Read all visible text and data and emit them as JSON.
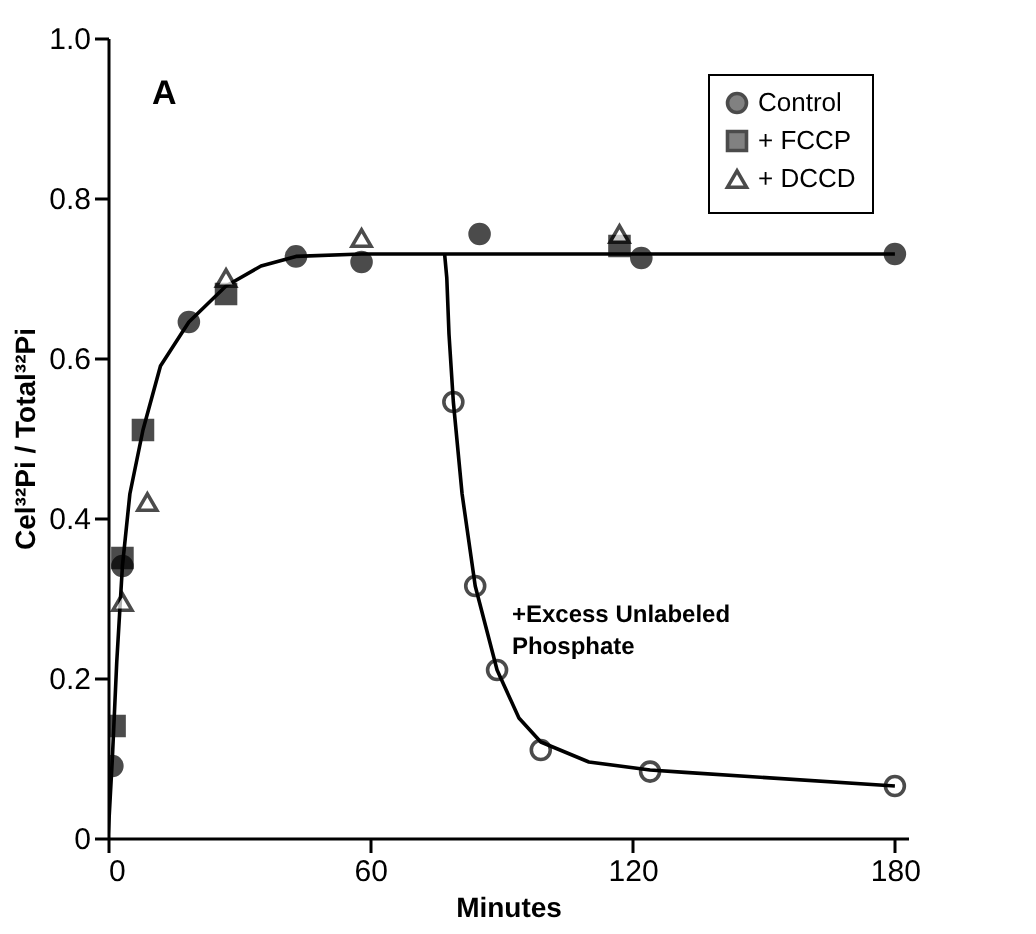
{
  "chart_data": {
    "type": "scatter",
    "xlabel": "Minutes",
    "ylabel": "Cel³²Pi / Total³²Pi",
    "xlim": [
      0,
      183
    ],
    "ylim": [
      0,
      1
    ],
    "xticks": [
      0,
      60,
      120,
      180
    ],
    "yticks": [
      0,
      {
        "value": 0.2,
        "label": "0.2"
      },
      {
        "value": 0.4,
        "label": "0.4"
      },
      {
        "value": 0.6,
        "label": "0.6"
      },
      {
        "value": 0.8,
        "label": "0.8"
      },
      {
        "value": 1,
        "label": "1.0"
      }
    ],
    "grid": false,
    "legend": "top right",
    "annotations": [
      "A",
      {
        "text": "+Excess Unlabeled Phosphate",
        "x": 86,
        "y": 0.27
      }
    ],
    "series": [
      {
        "name": "Control",
        "marker": "circle",
        "color": "#000000",
        "x": [
          1,
          3.3,
          18.5,
          43,
          58,
          85,
          122,
          180
        ],
        "values": [
          0.09,
          0.34,
          0.645,
          0.727,
          0.72,
          0.755,
          0.725,
          0.73
        ]
      },
      {
        "name": "+ FCCP",
        "marker": "square",
        "color": "#000000",
        "x": [
          1.5,
          3.3,
          8,
          27,
          117
        ],
        "values": [
          0.14,
          0.35,
          0.51,
          0.68,
          0.74
        ]
      },
      {
        "name": "+ DCCD",
        "marker": "triangle",
        "color": "#ffffff",
        "x": [
          3.3,
          9,
          27,
          58,
          117
        ],
        "values": [
          0.295,
          0.42,
          0.7,
          0.75,
          0.755
        ]
      },
      {
        "marker": "circle",
        "color": "#ffffff",
        "x": [
          79,
          84,
          89,
          99,
          124,
          180
        ],
        "values": [
          0.545,
          0.315,
          0.21,
          0.11,
          0.083,
          0.065
        ]
      },
      {
        "type": "line",
        "marker": "none",
        "line_style": "solid",
        "color": "#000000",
        "x": [
          0,
          0.5,
          1,
          2,
          3.3,
          5,
          8,
          12,
          18.5,
          27,
          35,
          43,
          58,
          132,
          180
        ],
        "values": [
          0,
          0.05,
          0.1,
          0.22,
          0.34,
          0.43,
          0.51,
          0.59,
          0.645,
          0.69,
          0.715,
          0.727,
          0.73,
          0.73,
          0.73
        ]
      },
      {
        "type": "line",
        "marker": "none",
        "line_style": "solid",
        "color": "#000000",
        "x": [
          77,
          77.5,
          78,
          79,
          81,
          84,
          89,
          94,
          99,
          110,
          124,
          132,
          180
        ],
        "values": [
          0.73,
          0.7,
          0.63,
          0.545,
          0.43,
          0.315,
          0.21,
          0.15,
          0.12,
          0.095,
          0.085,
          0.082,
          0.065
        ]
      }
    ]
  }
}
